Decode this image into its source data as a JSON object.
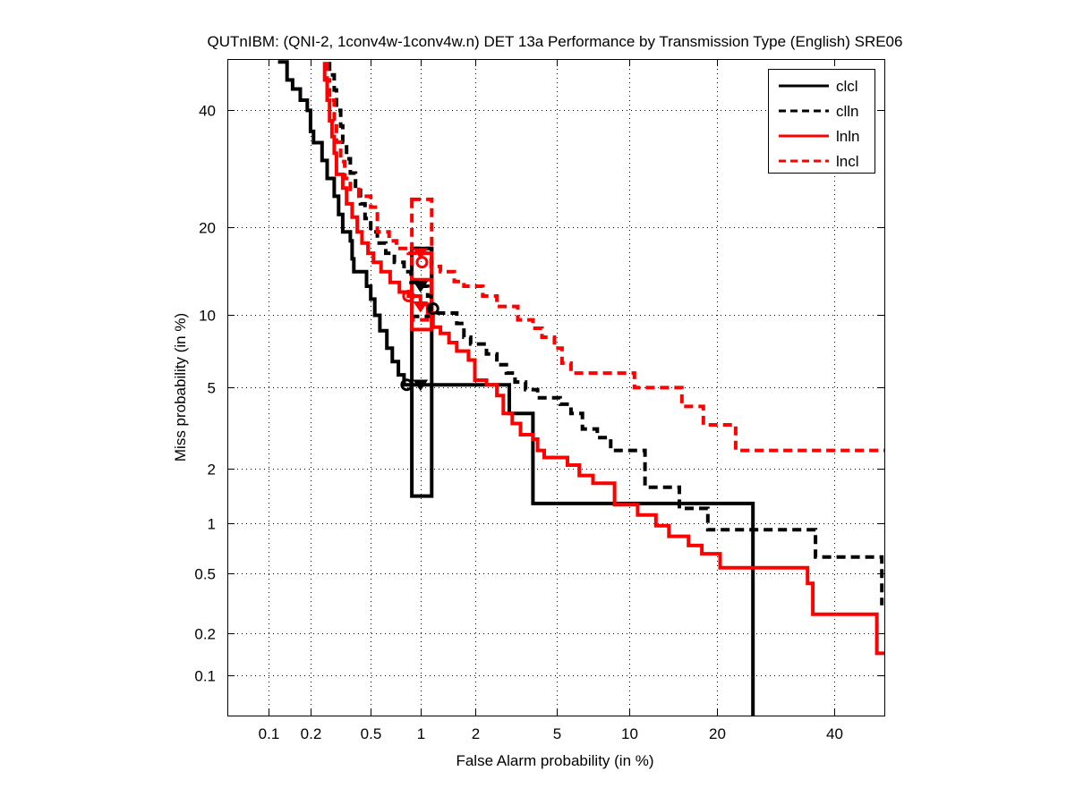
{
  "chart_data": {
    "type": "line",
    "subtype": "DET (normal-deviate axes)",
    "title": "QUTnIBM: (QNI-2, 1conv4w-1conv4w.n) DET 13a Performance by Transmission Type (English) SRE06",
    "xlabel": "False Alarm probability (in %)",
    "ylabel": "Miss probability (in %)",
    "xscale": "probit",
    "yscale": "probit",
    "xlim": [
      0.05,
      50
    ],
    "ylim": [
      0.05,
      50
    ],
    "xticks": [
      0.1,
      0.2,
      0.5,
      1,
      2,
      5,
      10,
      20,
      40
    ],
    "xtick_labels": [
      "0.1",
      "0.2",
      "0.5",
      "1",
      "2",
      "5",
      "10",
      "20",
      "40"
    ],
    "yticks": [
      0.1,
      0.2,
      0.5,
      1,
      2,
      5,
      10,
      20,
      40
    ],
    "ytick_labels": [
      "0.1",
      "0.2",
      "0.5",
      "1",
      "2",
      "5",
      "10",
      "20",
      "40"
    ],
    "grid": true,
    "legend": {
      "position": "top-right",
      "entries": [
        "clcl",
        "clln",
        "lnln",
        "lncl"
      ]
    },
    "series": [
      {
        "name": "clcl",
        "color": "#000000",
        "dash": "solid",
        "points": [
          [
            0.118,
            49.6
          ],
          [
            0.137,
            49.6
          ],
          [
            0.137,
            46.0
          ],
          [
            0.15,
            46.0
          ],
          [
            0.15,
            44.2
          ],
          [
            0.17,
            44.2
          ],
          [
            0.17,
            42
          ],
          [
            0.19,
            42
          ],
          [
            0.19,
            40
          ],
          [
            0.2,
            40
          ],
          [
            0.2,
            36
          ],
          [
            0.21,
            36
          ],
          [
            0.21,
            33.9
          ],
          [
            0.24,
            33.9
          ],
          [
            0.24,
            30.7
          ],
          [
            0.26,
            30.7
          ],
          [
            0.26,
            27.6
          ],
          [
            0.29,
            27.6
          ],
          [
            0.29,
            24.7
          ],
          [
            0.31,
            24.7
          ],
          [
            0.31,
            21.9
          ],
          [
            0.33,
            21.9
          ],
          [
            0.33,
            19.4
          ],
          [
            0.37,
            19.4
          ],
          [
            0.37,
            18.2
          ],
          [
            0.38,
            18.2
          ],
          [
            0.38,
            15.9
          ],
          [
            0.39,
            15.9
          ],
          [
            0.39,
            14.4
          ],
          [
            0.47,
            14.4
          ],
          [
            0.47,
            12.8
          ],
          [
            0.5,
            12.8
          ],
          [
            0.5,
            11.5
          ],
          [
            0.53,
            11.5
          ],
          [
            0.53,
            10.0
          ],
          [
            0.57,
            10.0
          ],
          [
            0.57,
            8.7
          ],
          [
            0.63,
            8.7
          ],
          [
            0.63,
            7.4
          ],
          [
            0.68,
            7.4
          ],
          [
            0.68,
            6.5
          ],
          [
            0.74,
            6.5
          ],
          [
            0.74,
            5.7
          ],
          [
            0.8,
            5.7
          ],
          [
            0.8,
            5.15
          ],
          [
            3.0,
            5.15
          ],
          [
            3.0,
            3.8
          ],
          [
            3.9,
            3.8
          ],
          [
            3.9,
            1.3
          ],
          [
            25.5,
            1.3
          ],
          [
            25.5,
            0.05
          ]
        ]
      },
      {
        "name": "clln",
        "color": "#000000",
        "dash": "dashed",
        "points": [
          [
            0.27,
            49.6
          ],
          [
            0.27,
            47
          ],
          [
            0.29,
            47
          ],
          [
            0.29,
            44
          ],
          [
            0.3,
            44
          ],
          [
            0.3,
            40
          ],
          [
            0.32,
            40
          ],
          [
            0.32,
            37
          ],
          [
            0.33,
            37
          ],
          [
            0.33,
            34
          ],
          [
            0.35,
            34
          ],
          [
            0.35,
            31
          ],
          [
            0.37,
            31
          ],
          [
            0.37,
            28.5
          ],
          [
            0.4,
            28.5
          ],
          [
            0.4,
            26
          ],
          [
            0.43,
            26
          ],
          [
            0.43,
            23.5
          ],
          [
            0.46,
            23.5
          ],
          [
            0.46,
            21.3
          ],
          [
            0.5,
            21.3
          ],
          [
            0.5,
            19.4
          ],
          [
            0.55,
            19.4
          ],
          [
            0.55,
            17.9
          ],
          [
            0.62,
            17.9
          ],
          [
            0.62,
            16.6
          ],
          [
            0.7,
            16.6
          ],
          [
            0.7,
            15.5
          ],
          [
            0.8,
            15.5
          ],
          [
            0.8,
            14.4
          ],
          [
            0.88,
            14.4
          ],
          [
            0.88,
            13.2
          ],
          [
            1.0,
            13.2
          ],
          [
            1.0,
            12.8
          ],
          [
            1.1,
            12.8
          ],
          [
            1.1,
            11.8
          ],
          [
            1.15,
            11.8
          ],
          [
            1.15,
            10.2
          ],
          [
            1.6,
            10.2
          ],
          [
            1.6,
            9.3
          ],
          [
            1.75,
            9.3
          ],
          [
            1.75,
            8.2
          ],
          [
            1.9,
            8.2
          ],
          [
            1.9,
            7.7
          ],
          [
            2.3,
            7.7
          ],
          [
            2.3,
            7.0
          ],
          [
            2.6,
            7.0
          ],
          [
            2.6,
            6.3
          ],
          [
            2.9,
            6.3
          ],
          [
            2.9,
            5.8
          ],
          [
            3.2,
            5.8
          ],
          [
            3.2,
            5.3
          ],
          [
            3.6,
            5.3
          ],
          [
            3.6,
            4.9
          ],
          [
            4.1,
            4.9
          ],
          [
            4.1,
            4.5
          ],
          [
            5.2,
            4.5
          ],
          [
            5.2,
            4.2
          ],
          [
            5.8,
            4.2
          ],
          [
            5.8,
            3.8
          ],
          [
            6.5,
            3.8
          ],
          [
            6.5,
            3.2
          ],
          [
            7.5,
            3.2
          ],
          [
            7.5,
            2.9
          ],
          [
            8.5,
            2.9
          ],
          [
            8.5,
            2.5
          ],
          [
            11.5,
            2.5
          ],
          [
            11.5,
            1.6
          ],
          [
            15.2,
            1.6
          ],
          [
            15.2,
            1.22
          ],
          [
            18.8,
            1.22
          ],
          [
            18.8,
            0.92
          ],
          [
            36.5,
            0.92
          ],
          [
            36.5,
            0.63
          ],
          [
            49.5,
            0.63
          ],
          [
            49.5,
            0.31
          ]
        ]
      },
      {
        "name": "lnln",
        "color": "#ff0000",
        "dash": "solid",
        "points": [
          [
            0.25,
            49.6
          ],
          [
            0.25,
            46
          ],
          [
            0.26,
            46
          ],
          [
            0.26,
            42
          ],
          [
            0.27,
            42
          ],
          [
            0.27,
            38
          ],
          [
            0.28,
            38
          ],
          [
            0.28,
            35
          ],
          [
            0.29,
            35
          ],
          [
            0.29,
            32
          ],
          [
            0.3,
            32
          ],
          [
            0.3,
            28.3
          ],
          [
            0.33,
            28.3
          ],
          [
            0.33,
            26
          ],
          [
            0.35,
            26
          ],
          [
            0.35,
            23.5
          ],
          [
            0.38,
            23.5
          ],
          [
            0.38,
            21.5
          ],
          [
            0.41,
            21.5
          ],
          [
            0.41,
            19.4
          ],
          [
            0.44,
            19.4
          ],
          [
            0.44,
            17.9
          ],
          [
            0.48,
            17.9
          ],
          [
            0.48,
            16.6
          ],
          [
            0.52,
            16.6
          ],
          [
            0.52,
            15.5
          ],
          [
            0.58,
            15.5
          ],
          [
            0.58,
            14.4
          ],
          [
            0.66,
            14.4
          ],
          [
            0.66,
            13.2
          ],
          [
            0.75,
            13.2
          ],
          [
            0.75,
            12.2
          ],
          [
            0.85,
            12.2
          ],
          [
            0.85,
            11.8
          ],
          [
            1.0,
            11.8
          ],
          [
            1.0,
            11.0
          ],
          [
            1.1,
            11.0
          ],
          [
            1.1,
            10.2
          ],
          [
            1.18,
            10.2
          ],
          [
            1.18,
            9.0
          ],
          [
            1.3,
            9.0
          ],
          [
            1.3,
            8.5
          ],
          [
            1.45,
            8.5
          ],
          [
            1.45,
            7.8
          ],
          [
            1.6,
            7.8
          ],
          [
            1.6,
            7.2
          ],
          [
            1.85,
            7.2
          ],
          [
            1.85,
            6.6
          ],
          [
            2.0,
            6.6
          ],
          [
            2.0,
            5.4
          ],
          [
            2.3,
            5.4
          ],
          [
            2.3,
            5.15
          ],
          [
            2.6,
            5.15
          ],
          [
            2.6,
            4.6
          ],
          [
            2.8,
            4.6
          ],
          [
            2.8,
            3.8
          ],
          [
            3.1,
            3.8
          ],
          [
            3.1,
            3.4
          ],
          [
            3.4,
            3.4
          ],
          [
            3.4,
            3.0
          ],
          [
            3.9,
            3.0
          ],
          [
            3.9,
            2.85
          ],
          [
            4.1,
            2.85
          ],
          [
            4.1,
            2.5
          ],
          [
            4.4,
            2.5
          ],
          [
            4.4,
            2.3
          ],
          [
            5.6,
            2.3
          ],
          [
            5.6,
            2.1
          ],
          [
            6.3,
            2.1
          ],
          [
            6.3,
            1.85
          ],
          [
            7.2,
            1.85
          ],
          [
            7.2,
            1.68
          ],
          [
            8.8,
            1.68
          ],
          [
            8.8,
            1.28
          ],
          [
            10.8,
            1.28
          ],
          [
            10.8,
            1.12
          ],
          [
            12.6,
            1.12
          ],
          [
            12.6,
            0.97
          ],
          [
            14.0,
            0.97
          ],
          [
            14.0,
            0.84
          ],
          [
            16.3,
            0.84
          ],
          [
            16.3,
            0.74
          ],
          [
            18.0,
            0.74
          ],
          [
            18.0,
            0.66
          ],
          [
            20.5,
            0.66
          ],
          [
            20.5,
            0.54
          ],
          [
            35.0,
            0.54
          ],
          [
            35.0,
            0.43
          ],
          [
            36.0,
            0.43
          ],
          [
            36.0,
            0.27
          ],
          [
            48.5,
            0.27
          ],
          [
            48.5,
            0.145
          ],
          [
            50.7,
            0.145
          ]
        ]
      },
      {
        "name": "lncl",
        "color": "#ff0000",
        "dash": "dashed",
        "points": [
          [
            0.26,
            49.6
          ],
          [
            0.26,
            46
          ],
          [
            0.27,
            46
          ],
          [
            0.27,
            42
          ],
          [
            0.29,
            42
          ],
          [
            0.29,
            38
          ],
          [
            0.3,
            38
          ],
          [
            0.3,
            34
          ],
          [
            0.32,
            34
          ],
          [
            0.32,
            30.5
          ],
          [
            0.34,
            30.5
          ],
          [
            0.34,
            27.6
          ],
          [
            0.37,
            27.6
          ],
          [
            0.37,
            25.8
          ],
          [
            0.42,
            25.8
          ],
          [
            0.42,
            24.7
          ],
          [
            0.5,
            24.7
          ],
          [
            0.5,
            23.0
          ],
          [
            0.55,
            23.0
          ],
          [
            0.55,
            19.4
          ],
          [
            0.65,
            19.4
          ],
          [
            0.65,
            18.2
          ],
          [
            0.72,
            18.2
          ],
          [
            0.72,
            17.2
          ],
          [
            0.85,
            17.2
          ],
          [
            0.85,
            16.6
          ],
          [
            1.15,
            16.6
          ],
          [
            1.15,
            15.0
          ],
          [
            1.3,
            15.0
          ],
          [
            1.3,
            14.4
          ],
          [
            1.55,
            14.4
          ],
          [
            1.55,
            13.3
          ],
          [
            1.75,
            13.3
          ],
          [
            1.75,
            12.8
          ],
          [
            2.2,
            12.8
          ],
          [
            2.2,
            11.8
          ],
          [
            2.6,
            11.8
          ],
          [
            2.6,
            10.8
          ],
          [
            3.3,
            10.8
          ],
          [
            3.3,
            9.6
          ],
          [
            3.9,
            9.6
          ],
          [
            3.9,
            8.9
          ],
          [
            4.3,
            8.9
          ],
          [
            4.3,
            8.2
          ],
          [
            4.9,
            8.2
          ],
          [
            4.9,
            7.4
          ],
          [
            5.3,
            7.4
          ],
          [
            5.3,
            6.4
          ],
          [
            5.8,
            6.4
          ],
          [
            5.8,
            5.8
          ],
          [
            10.5,
            5.8
          ],
          [
            10.5,
            5.0
          ],
          [
            15.5,
            5.0
          ],
          [
            15.5,
            4.1
          ],
          [
            18.2,
            4.1
          ],
          [
            18.2,
            3.35
          ],
          [
            22.8,
            3.35
          ],
          [
            22.8,
            2.5
          ],
          [
            50.7,
            2.5
          ]
        ]
      }
    ],
    "operating_points": [
      {
        "series": "clcl",
        "marker": "circle",
        "x": 0.83,
        "y": 5.15
      },
      {
        "series": "clcl",
        "marker": "triangle-down",
        "x": 1.0,
        "y": 5.15
      },
      {
        "series": "clln",
        "marker": "circle",
        "x": 1.18,
        "y": 10.6
      },
      {
        "series": "clln",
        "marker": "triangle-down",
        "x": 1.0,
        "y": 12.8
      },
      {
        "series": "lnln",
        "marker": "circle",
        "x": 0.85,
        "y": 11.8
      },
      {
        "series": "lnln",
        "marker": "triangle-down",
        "x": 1.0,
        "y": 10.8
      },
      {
        "series": "lncl",
        "marker": "circle",
        "x": 1.02,
        "y": 15.5
      },
      {
        "series": "lncl",
        "marker": "triangle-down",
        "x": 1.0,
        "y": 16.6
      }
    ],
    "confidence_boxes": [
      {
        "series": "clcl",
        "x": [
          0.89,
          1.16
        ],
        "y": [
          1.43,
          17.2
        ]
      },
      {
        "series": "clln",
        "x": [
          0.89,
          1.16
        ],
        "y": [
          9.9,
          17.2
        ]
      },
      {
        "series": "lnln",
        "x": [
          0.89,
          1.16
        ],
        "y": [
          8.8,
          13.5
        ]
      },
      {
        "series": "lncl",
        "x": [
          0.89,
          1.16
        ],
        "y": [
          9.6,
          24.2
        ]
      }
    ]
  }
}
